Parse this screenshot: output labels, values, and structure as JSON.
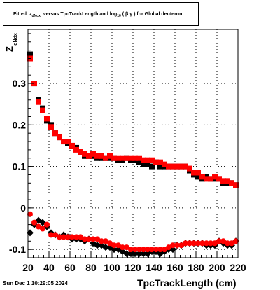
{
  "title": {
    "prefix": "Fitted",
    "z_symbol": "z",
    "z_sub": "dNdx",
    "middle": "versus TpcTrackLength and log",
    "log_sub": "10",
    "beta_gamma": "( β γ )",
    "suffix": "for Global deuteron"
  },
  "footer": "Sun Dec  1 10:29:05 2024",
  "colors": {
    "series_black": "#000000",
    "series_red": "#ff0000",
    "grid": "#000000"
  },
  "chart_data": {
    "type": "scatter",
    "xlabel": "TpcTrackLength (cm)",
    "ylabel_main": "Z",
    "ylabel_sub": "dNdx",
    "xlim": [
      20,
      220
    ],
    "ylim": [
      -0.12,
      0.43
    ],
    "x_ticks": [
      "20",
      "40",
      "60",
      "80",
      "100",
      "120",
      "140",
      "160",
      "180",
      "200",
      "220"
    ],
    "y_ticks": [
      "-0.1",
      "0",
      "0.1",
      "0.2",
      "0.3"
    ],
    "y_tick_values": [
      -0.1,
      0,
      0.1,
      0.2,
      0.3
    ],
    "grid": true,
    "series": [
      {
        "marker": "square-black",
        "x": [
          22,
          26,
          30,
          34,
          38,
          42,
          46,
          50,
          54,
          58,
          62,
          66,
          70,
          74,
          78,
          82,
          86,
          90,
          94,
          98,
          102,
          106,
          110,
          114,
          118,
          122,
          126,
          130,
          134,
          138,
          142,
          146,
          150,
          154,
          158,
          162,
          166,
          170,
          174,
          178,
          182,
          186,
          190,
          194,
          198,
          202,
          206,
          210,
          214,
          218
        ],
        "y": [
          0.37,
          0.3,
          0.26,
          0.24,
          0.21,
          0.2,
          0.18,
          0.17,
          0.16,
          0.155,
          0.15,
          0.145,
          0.135,
          0.125,
          0.125,
          0.125,
          0.12,
          0.12,
          0.12,
          0.12,
          0.12,
          0.115,
          0.115,
          0.12,
          0.115,
          0.115,
          0.11,
          0.105,
          0.105,
          0.1,
          0.11,
          0.1,
          0.1,
          0.1,
          0.1,
          0.1,
          0.1,
          0.1,
          0.09,
          0.08,
          0.075,
          0.07,
          0.075,
          0.07,
          0.07,
          0.07,
          0.06,
          0.06,
          0.06,
          0.055
        ]
      },
      {
        "marker": "square-red",
        "x": [
          22,
          26,
          30,
          34,
          38,
          42,
          46,
          50,
          54,
          58,
          62,
          66,
          70,
          74,
          78,
          82,
          86,
          90,
          94,
          98,
          102,
          106,
          110,
          114,
          118,
          122,
          126,
          130,
          134,
          138,
          142,
          146,
          150,
          154,
          158,
          162,
          166,
          170,
          174,
          178,
          182,
          186,
          190,
          194,
          198,
          202,
          206,
          210,
          214,
          218
        ],
        "y": [
          0.36,
          0.3,
          0.255,
          0.235,
          0.215,
          0.195,
          0.18,
          0.17,
          0.16,
          0.16,
          0.15,
          0.14,
          0.135,
          0.13,
          0.125,
          0.13,
          0.125,
          0.125,
          0.12,
          0.125,
          0.12,
          0.12,
          0.12,
          0.12,
          0.12,
          0.12,
          0.12,
          0.115,
          0.115,
          0.115,
          0.11,
          0.11,
          0.105,
          0.1,
          0.1,
          0.1,
          0.1,
          0.1,
          0.095,
          0.085,
          0.085,
          0.075,
          0.07,
          0.07,
          0.075,
          0.07,
          0.065,
          0.065,
          0.06,
          0.055
        ]
      },
      {
        "marker": "diamond-black",
        "x": [
          22,
          26,
          30,
          34,
          38,
          42,
          46,
          50,
          54,
          58,
          62,
          66,
          70,
          74,
          78,
          82,
          86,
          90,
          94,
          98,
          102,
          106,
          110,
          114,
          118,
          122,
          126,
          130,
          134,
          138,
          142,
          146,
          150,
          154,
          158,
          162,
          166,
          170,
          174,
          178,
          182,
          186,
          190,
          194,
          198,
          202,
          206,
          210,
          214,
          218
        ],
        "y": [
          -0.06,
          -0.04,
          -0.03,
          -0.035,
          -0.045,
          -0.06,
          -0.065,
          -0.07,
          -0.065,
          -0.07,
          -0.075,
          -0.075,
          -0.075,
          -0.08,
          -0.075,
          -0.085,
          -0.09,
          -0.09,
          -0.095,
          -0.095,
          -0.1,
          -0.1,
          -0.105,
          -0.11,
          -0.11,
          -0.11,
          -0.11,
          -0.11,
          -0.11,
          -0.105,
          -0.105,
          -0.11,
          -0.105,
          -0.1,
          -0.1,
          -0.09,
          -0.09,
          -0.085,
          -0.085,
          -0.085,
          -0.085,
          -0.085,
          -0.09,
          -0.09,
          -0.09,
          -0.08,
          -0.085,
          -0.09,
          -0.09,
          -0.08
        ]
      },
      {
        "marker": "circle-red",
        "x": [
          22,
          26,
          30,
          34,
          38,
          42,
          46,
          50,
          54,
          58,
          62,
          66,
          70,
          74,
          78,
          82,
          86,
          90,
          94,
          98,
          102,
          106,
          110,
          114,
          118,
          122,
          126,
          130,
          134,
          138,
          142,
          146,
          150,
          154,
          158,
          162,
          166,
          170,
          174,
          178,
          182,
          186,
          190,
          194,
          198,
          202,
          206,
          210,
          214,
          218
        ],
        "y": [
          -0.015,
          -0.035,
          -0.045,
          -0.05,
          -0.04,
          -0.065,
          -0.065,
          -0.07,
          -0.07,
          -0.07,
          -0.07,
          -0.07,
          -0.07,
          -0.075,
          -0.075,
          -0.075,
          -0.075,
          -0.08,
          -0.08,
          -0.085,
          -0.09,
          -0.09,
          -0.095,
          -0.095,
          -0.1,
          -0.1,
          -0.1,
          -0.1,
          -0.1,
          -0.1,
          -0.1,
          -0.1,
          -0.1,
          -0.095,
          -0.09,
          -0.09,
          -0.09,
          -0.085,
          -0.085,
          -0.085,
          -0.085,
          -0.085,
          -0.085,
          -0.085,
          -0.085,
          -0.08,
          -0.08,
          -0.085,
          -0.085,
          -0.08
        ]
      }
    ]
  }
}
